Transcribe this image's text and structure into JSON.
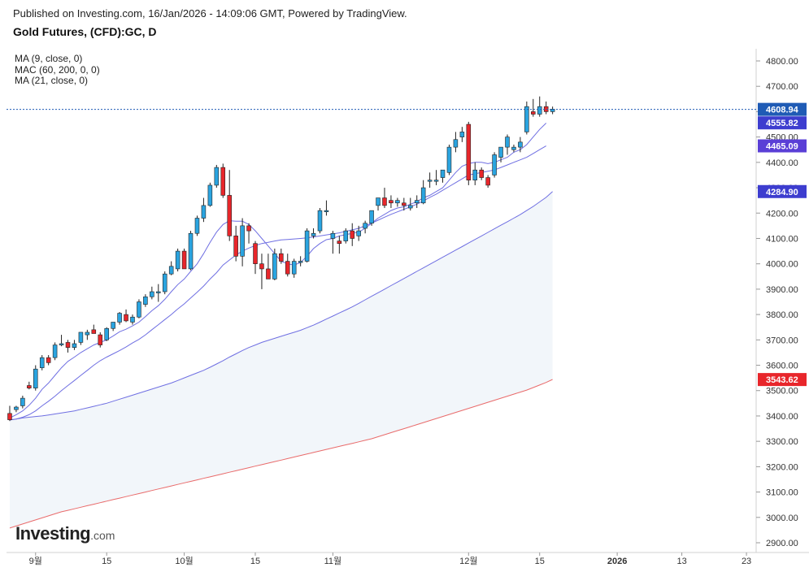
{
  "header": {
    "published_line": "Published on Investing.com, 16/Jan/2026 - 14:09:06 GMT, Powered by TradingView.",
    "title": "Gold Futures, (CFD):GC, D"
  },
  "legend": {
    "items": [
      "MA (9, close, 0)",
      "MAC (60, 200, 0, 0)",
      "MA (21, close, 0)"
    ]
  },
  "logo": {
    "brand": "Investing",
    "domain": ".com"
  },
  "colors": {
    "up": "#2aa4e0",
    "down": "#e8262b",
    "ma": "#6f6fe2",
    "mac_upper": "#6f6fe2",
    "mac_lower": "#e96b6b",
    "band_fill": "#f2f6fa",
    "price_line": "#1f5bb5",
    "grid": "#e6e6e6"
  },
  "chart_data": {
    "type": "candlestick",
    "title": "Gold Futures, (CFD):GC, D",
    "y_axis": {
      "ylim": [
        2860,
        4860
      ],
      "ticks": [
        2900,
        3000,
        3100,
        3200,
        3300,
        3400,
        3500,
        3600,
        3700,
        3800,
        3900,
        4000,
        4100,
        4200,
        4300,
        4400,
        4500,
        4600,
        4700,
        4800
      ],
      "tick_labels": [
        "2900.00",
        "3000.00",
        "3100.00",
        "3200.00",
        "3300.00",
        "3400.00",
        "3500.00",
        "3600.00",
        "3700.00",
        "3800.00",
        "3900.00",
        "4000.00",
        "4100.00",
        "4200.00",
        "4300.00",
        "4400.00",
        "4500.00",
        "4600.00",
        "4700.00",
        "4800.00"
      ]
    },
    "x_axis": {
      "labels": [
        {
          "text": "9월",
          "index": 4
        },
        {
          "text": "15",
          "index": 15
        },
        {
          "text": "10월",
          "index": 27
        },
        {
          "text": "15",
          "index": 38
        },
        {
          "text": "11월",
          "index": 50
        },
        {
          "text": "12월",
          "index": 71
        },
        {
          "text": "15",
          "index": 82
        },
        {
          "text": "2026",
          "index": 94
        },
        {
          "text": "13",
          "index": 104
        },
        {
          "text": "23",
          "index": 114
        }
      ],
      "total_slots": 116
    },
    "price_badges": [
      {
        "label": "4608.94",
        "value": 4608.94,
        "color": "#1f5bb5"
      },
      {
        "label": "4555.82",
        "value": 4555.82,
        "color": "#3d3dcf"
      },
      {
        "label": "4465.09",
        "value": 4465.09,
        "color": "#5a3fd6"
      },
      {
        "label": "4284.90",
        "value": 4284.9,
        "color": "#3d3dcf"
      },
      {
        "label": "3543.62",
        "value": 3543.62,
        "color": "#e8262b"
      }
    ],
    "candles": [
      [
        3410,
        3440,
        3380,
        3385
      ],
      [
        3425,
        3440,
        3415,
        3435
      ],
      [
        3440,
        3480,
        3430,
        3470
      ],
      [
        3520,
        3535,
        3505,
        3510
      ],
      [
        3510,
        3600,
        3500,
        3585
      ],
      [
        3590,
        3640,
        3580,
        3630
      ],
      [
        3630,
        3640,
        3600,
        3610
      ],
      [
        3630,
        3690,
        3620,
        3680
      ],
      [
        3680,
        3720,
        3675,
        3685
      ],
      [
        3690,
        3700,
        3650,
        3670
      ],
      [
        3670,
        3700,
        3660,
        3685
      ],
      [
        3690,
        3730,
        3680,
        3730
      ],
      [
        3720,
        3740,
        3700,
        3730
      ],
      [
        3740,
        3760,
        3725,
        3725
      ],
      [
        3720,
        3730,
        3670,
        3680
      ],
      [
        3700,
        3750,
        3695,
        3745
      ],
      [
        3745,
        3770,
        3735,
        3770
      ],
      [
        3770,
        3810,
        3760,
        3805
      ],
      [
        3800,
        3820,
        3770,
        3775
      ],
      [
        3770,
        3800,
        3760,
        3790
      ],
      [
        3790,
        3860,
        3785,
        3850
      ],
      [
        3840,
        3880,
        3830,
        3870
      ],
      [
        3870,
        3910,
        3860,
        3890
      ],
      [
        3890,
        3920,
        3850,
        3890
      ],
      [
        3890,
        3970,
        3880,
        3960
      ],
      [
        3960,
        4010,
        3955,
        3990
      ],
      [
        3980,
        4060,
        3970,
        4050
      ],
      [
        4050,
        4060,
        3980,
        3980
      ],
      [
        3980,
        4130,
        3975,
        4120
      ],
      [
        4120,
        4190,
        4110,
        4180
      ],
      [
        4180,
        4260,
        4165,
        4230
      ],
      [
        4230,
        4320,
        4225,
        4310
      ],
      [
        4310,
        4390,
        4300,
        4380
      ],
      [
        4380,
        4395,
        4260,
        4270
      ],
      [
        4270,
        4370,
        4090,
        4110
      ],
      [
        4110,
        4150,
        4010,
        4030
      ],
      [
        4030,
        4180,
        3990,
        4150
      ],
      [
        4150,
        4160,
        4080,
        4130
      ],
      [
        4080,
        4090,
        3960,
        4000
      ],
      [
        4000,
        4040,
        3900,
        3980
      ],
      [
        3980,
        4040,
        3950,
        3940
      ],
      [
        3940,
        4060,
        3935,
        4040
      ],
      [
        4040,
        4060,
        4000,
        4010
      ],
      [
        4010,
        4040,
        3950,
        3960
      ],
      [
        3960,
        4020,
        3945,
        4010
      ],
      [
        4010,
        4030,
        3990,
        4010
      ],
      [
        4010,
        4140,
        4005,
        4130
      ],
      [
        4110,
        4140,
        4100,
        4120
      ],
      [
        4130,
        4220,
        4120,
        4210
      ],
      [
        4210,
        4250,
        4190,
        4210
      ],
      [
        4100,
        4130,
        4040,
        4120
      ],
      [
        4090,
        4110,
        4040,
        4080
      ],
      [
        4090,
        4140,
        4080,
        4130
      ],
      [
        4130,
        4160,
        4070,
        4100
      ],
      [
        4110,
        4150,
        4090,
        4130
      ],
      [
        4140,
        4170,
        4120,
        4160
      ],
      [
        4160,
        4210,
        4150,
        4210
      ],
      [
        4230,
        4260,
        4210,
        4260
      ],
      [
        4260,
        4300,
        4220,
        4230
      ],
      [
        4250,
        4270,
        4220,
        4240
      ],
      [
        4240,
        4260,
        4225,
        4250
      ],
      [
        4240,
        4260,
        4210,
        4230
      ],
      [
        4220,
        4260,
        4210,
        4230
      ],
      [
        4240,
        4270,
        4220,
        4250
      ],
      [
        4240,
        4330,
        4235,
        4300
      ],
      [
        4330,
        4360,
        4300,
        4330
      ],
      [
        4330,
        4370,
        4310,
        4330
      ],
      [
        4340,
        4370,
        4320,
        4370
      ],
      [
        4360,
        4470,
        4350,
        4460
      ],
      [
        4460,
        4520,
        4440,
        4490
      ],
      [
        4500,
        4540,
        4480,
        4520
      ],
      [
        4550,
        4560,
        4310,
        4330
      ],
      [
        4330,
        4400,
        4310,
        4370
      ],
      [
        4370,
        4380,
        4330,
        4340
      ],
      [
        4340,
        4350,
        4300,
        4310
      ],
      [
        4350,
        4440,
        4340,
        4430
      ],
      [
        4420,
        4460,
        4400,
        4460
      ],
      [
        4460,
        4510,
        4430,
        4500
      ],
      [
        4450,
        4470,
        4440,
        4460
      ],
      [
        4460,
        4500,
        4440,
        4480
      ],
      [
        4520,
        4640,
        4510,
        4620
      ],
      [
        4600,
        4650,
        4580,
        4590
      ],
      [
        4590,
        4660,
        4580,
        4620
      ],
      [
        4620,
        4640,
        4590,
        4600
      ],
      [
        4600,
        4620,
        4590,
        4610
      ]
    ],
    "candle_slot_indices_start": 0,
    "series": [
      {
        "name": "MA (9, close, 0)",
        "start": 0,
        "values": [
          3392,
          3405,
          3420,
          3442,
          3470,
          3505,
          3530,
          3560,
          3590,
          3615,
          3632,
          3650,
          3665,
          3680,
          3690,
          3700,
          3715,
          3732,
          3742,
          3755,
          3770,
          3792,
          3815,
          3835,
          3860,
          3890,
          3918,
          3940,
          3970,
          4000,
          4040,
          4085,
          4125,
          4155,
          4170,
          4168,
          4168,
          4155,
          4130,
          4100,
          4070,
          4040,
          4010,
          4000,
          3995,
          4005,
          4030,
          4060,
          4080,
          4095,
          4100,
          4110,
          4115,
          4120,
          4125,
          4140,
          4160,
          4180,
          4195,
          4210,
          4220,
          4225,
          4235,
          4245,
          4260,
          4270,
          4285,
          4300,
          4330,
          4360,
          4385,
          4395,
          4400,
          4400,
          4395,
          4400,
          4410,
          4420,
          4440,
          4450,
          4470,
          4500,
          4530,
          4555
        ]
      },
      {
        "name": "MA (21, close, 0)",
        "start": 0,
        "values": [
          3384,
          3388,
          3395,
          3405,
          3420,
          3440,
          3458,
          3478,
          3500,
          3520,
          3540,
          3560,
          3580,
          3600,
          3618,
          3632,
          3645,
          3658,
          3672,
          3688,
          3702,
          3720,
          3740,
          3760,
          3780,
          3800,
          3822,
          3842,
          3865,
          3888,
          3912,
          3940,
          3965,
          3995,
          4015,
          4035,
          4050,
          4062,
          4072,
          4080,
          4085,
          4090,
          4094,
          4096,
          4098,
          4100,
          4102,
          4106,
          4110,
          4114,
          4118,
          4122,
          4128,
          4134,
          4140,
          4150,
          4160,
          4172,
          4184,
          4195,
          4205,
          4215,
          4225,
          4235,
          4248,
          4262,
          4275,
          4290,
          4305,
          4320,
          4335,
          4350,
          4355,
          4360,
          4365,
          4370,
          4380,
          4390,
          4400,
          4410,
          4420,
          4435,
          4450,
          4465
        ]
      },
      {
        "name": "MAC upper (60)",
        "start": 0,
        "values": [
          3384,
          3388,
          3392,
          3395,
          3398,
          3400,
          3404,
          3408,
          3412,
          3416,
          3420,
          3426,
          3432,
          3438,
          3444,
          3450,
          3458,
          3466,
          3474,
          3482,
          3490,
          3498,
          3506,
          3514,
          3522,
          3530,
          3540,
          3550,
          3560,
          3570,
          3580,
          3592,
          3605,
          3618,
          3632,
          3645,
          3658,
          3670,
          3680,
          3690,
          3698,
          3706,
          3714,
          3722,
          3730,
          3738,
          3748,
          3758,
          3770,
          3782,
          3794,
          3806,
          3818,
          3830,
          3844,
          3858,
          3872,
          3886,
          3900,
          3914,
          3928,
          3942,
          3956,
          3970,
          3984,
          3998,
          4012,
          4026,
          4040,
          4054,
          4068,
          4082,
          4096,
          4110,
          4124,
          4138,
          4152,
          4166,
          4180,
          4194,
          4210,
          4226,
          4244,
          4262,
          4285
        ]
      },
      {
        "name": "MAC lower (200)",
        "start": 0,
        "values": [
          2958,
          2966,
          2974,
          2982,
          2990,
          2998,
          3006,
          3014,
          3022,
          3028,
          3034,
          3040,
          3046,
          3052,
          3058,
          3064,
          3070,
          3076,
          3082,
          3088,
          3094,
          3100,
          3106,
          3112,
          3118,
          3124,
          3130,
          3136,
          3142,
          3148,
          3154,
          3160,
          3166,
          3172,
          3178,
          3184,
          3190,
          3196,
          3202,
          3208,
          3214,
          3220,
          3226,
          3232,
          3238,
          3244,
          3250,
          3256,
          3262,
          3268,
          3274,
          3280,
          3286,
          3292,
          3298,
          3304,
          3310,
          3318,
          3326,
          3334,
          3342,
          3350,
          3358,
          3366,
          3374,
          3382,
          3390,
          3398,
          3406,
          3414,
          3422,
          3430,
          3438,
          3446,
          3454,
          3462,
          3470,
          3478,
          3486,
          3494,
          3502,
          3512,
          3522,
          3532,
          3544
        ]
      }
    ],
    "last_price": 4608.94
  }
}
